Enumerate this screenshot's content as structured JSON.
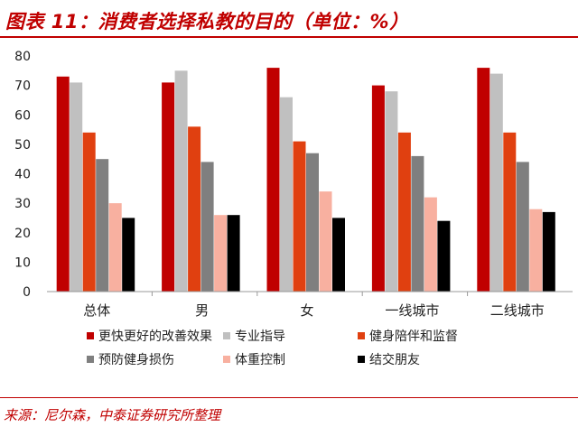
{
  "header": {
    "title": "图表 11：消费者选择私教的目的（单位：%）"
  },
  "footer": {
    "source": "来源：尼尔森，中泰证券研究所整理"
  },
  "chart_data": {
    "type": "bar",
    "title": "",
    "xlabel": "",
    "ylabel": "",
    "ylim": [
      0,
      80
    ],
    "yticks": [
      0,
      10,
      20,
      30,
      40,
      50,
      60,
      70,
      80
    ],
    "grid": false,
    "legend_position": "bottom",
    "categories": [
      "总体",
      "男",
      "女",
      "一线城市",
      "二线城市"
    ],
    "series": [
      {
        "name": "更快更好的改善效果",
        "color": "#c00000",
        "values": [
          73,
          71,
          76,
          70,
          76
        ]
      },
      {
        "name": "专业指导",
        "color": "#c0c0c0",
        "values": [
          71,
          75,
          66,
          68,
          74
        ]
      },
      {
        "name": "健身陪伴和监督",
        "color": "#e04010",
        "values": [
          54,
          56,
          51,
          54,
          54
        ]
      },
      {
        "name": "预防健身损伤",
        "color": "#7f7f7f",
        "values": [
          45,
          44,
          47,
          46,
          44
        ]
      },
      {
        "name": "体重控制",
        "color": "#f8b0a0",
        "values": [
          30,
          26,
          34,
          32,
          28
        ]
      },
      {
        "name": "结交朋友",
        "color": "#000000",
        "values": [
          25,
          26,
          25,
          24,
          27
        ]
      }
    ]
  }
}
